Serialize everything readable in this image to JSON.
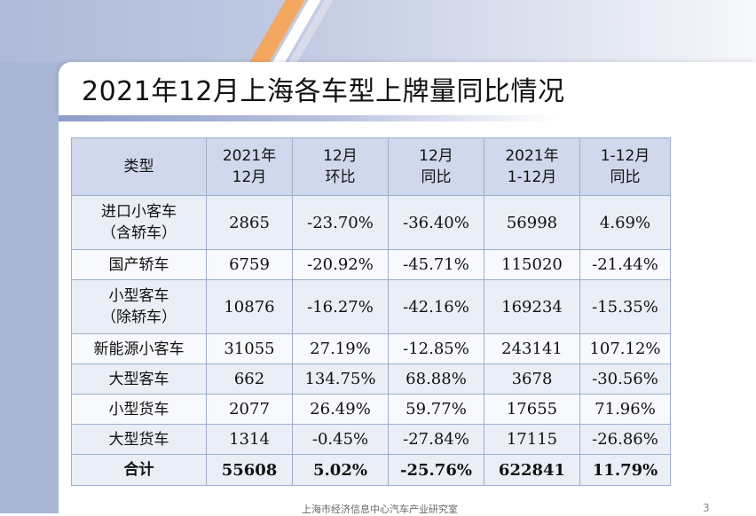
{
  "slide": {
    "title": "2021年12月上海各车型上牌量同比情况",
    "footer": "上海市经济信息中心汽车产业研究室",
    "page_number": "3"
  },
  "table": {
    "headers": [
      [
        "类型"
      ],
      [
        "2021年",
        "12月"
      ],
      [
        "12月",
        "环比"
      ],
      [
        "12月",
        "同比"
      ],
      [
        "2021年",
        "1-12月"
      ],
      [
        "1-12月",
        "同比"
      ]
    ],
    "rows": [
      {
        "type": [
          "进口小客车",
          "（含轿车）"
        ],
        "dec_2021": "2865",
        "mom": "-23.70%",
        "yoy_dec": "-36.40%",
        "ytd_2021": "56998",
        "yoy_ytd": "4.69%"
      },
      {
        "type": [
          "国产轿车"
        ],
        "dec_2021": "6759",
        "mom": "-20.92%",
        "yoy_dec": "-45.71%",
        "ytd_2021": "115020",
        "yoy_ytd": "-21.44%"
      },
      {
        "type": [
          "小型客车",
          "（除轿车）"
        ],
        "dec_2021": "10876",
        "mom": "-16.27%",
        "yoy_dec": "-42.16%",
        "ytd_2021": "169234",
        "yoy_ytd": "-15.35%"
      },
      {
        "type": [
          "新能源小客车"
        ],
        "dec_2021": "31055",
        "mom": "27.19%",
        "yoy_dec": "-12.85%",
        "ytd_2021": "243141",
        "yoy_ytd": "107.12%"
      },
      {
        "type": [
          "大型客车"
        ],
        "dec_2021": "662",
        "mom": "134.75%",
        "yoy_dec": "68.88%",
        "ytd_2021": "3678",
        "yoy_ytd": "-30.56%"
      },
      {
        "type": [
          "小型货车"
        ],
        "dec_2021": "2077",
        "mom": "26.49%",
        "yoy_dec": "59.77%",
        "ytd_2021": "17655",
        "yoy_ytd": "71.96%"
      },
      {
        "type": [
          "大型货车"
        ],
        "dec_2021": "1314",
        "mom": "-0.45%",
        "yoy_dec": "-27.84%",
        "ytd_2021": "17115",
        "yoy_ytd": "-26.86%"
      },
      {
        "type": [
          "合计"
        ],
        "dec_2021": "55608",
        "mom": "5.02%",
        "yoy_dec": "-25.76%",
        "ytd_2021": "622841",
        "yoy_ytd": "11.79%"
      }
    ]
  },
  "colors": {
    "header_fill": "#cfd8ec",
    "row_fill_odd": "#e9eef7",
    "row_fill_even": "#f7f9fc",
    "border": "#9dafcf",
    "accent_stripe": "#f4a85f",
    "side_band": "#aab6d6"
  }
}
